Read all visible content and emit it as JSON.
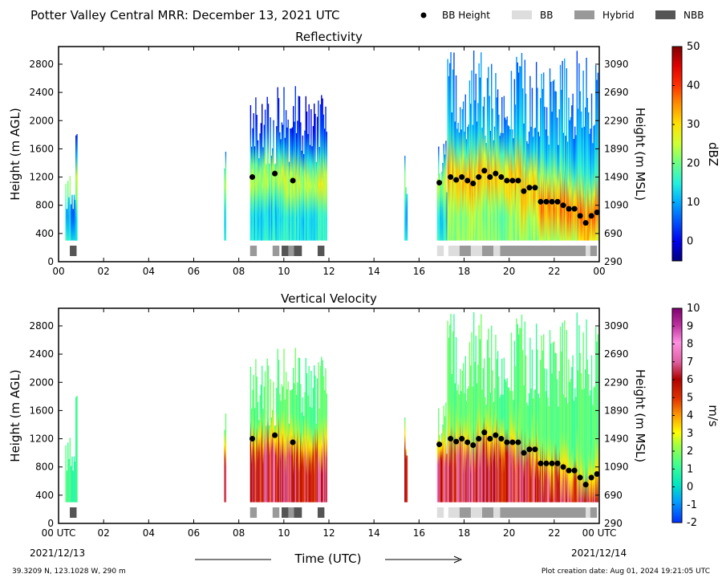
{
  "header": {
    "title": "Potter Valley Central MRR:  December 13, 2021 UTC",
    "legend": [
      {
        "label": "BB Height",
        "marker": "dot",
        "color": "#000000"
      },
      {
        "label": "BB",
        "marker": "box",
        "color": "#dddddd"
      },
      {
        "label": "Hybrid",
        "marker": "box",
        "color": "#999999"
      },
      {
        "label": "NBB",
        "marker": "box",
        "color": "#555555"
      }
    ]
  },
  "footer": {
    "location": "39.3209 N, 123.1028 W, 290 m",
    "creation": "Plot creation date: Aug 01, 2024 19:21:05 UTC",
    "start_date": "2021/12/13",
    "end_date": "2021/12/14",
    "time_label": "Time (UTC)"
  },
  "chart_data": [
    {
      "type": "heatmap",
      "title": "Reflectivity",
      "xlabel": "",
      "ylabel": "Height (m AGL)",
      "ylabel_right": "Height (m MSL)",
      "xlim": [
        0,
        24
      ],
      "ylim": [
        0,
        3050
      ],
      "x_ticks": [
        "00",
        "02",
        "04",
        "06",
        "08",
        "10",
        "12",
        "14",
        "16",
        "18",
        "20",
        "22",
        "00"
      ],
      "y_ticks": [
        0,
        400,
        800,
        1200,
        1600,
        2000,
        2400,
        2800
      ],
      "y_ticks_right": [
        290,
        690,
        1090,
        1490,
        1890,
        2290,
        2690,
        3090
      ],
      "colorbar": {
        "label": "dBZ",
        "min": -5,
        "max": 50,
        "ticks": [
          0,
          10,
          20,
          30,
          40,
          50
        ]
      },
      "grid": false
    },
    {
      "type": "heatmap",
      "title": "Vertical Velocity",
      "xlabel": "",
      "ylabel": "Height (m AGL)",
      "ylabel_right": "Height (m MSL)",
      "xlim": [
        0,
        24
      ],
      "ylim": [
        0,
        3050
      ],
      "x_ticks": [
        "00 UTC",
        "02",
        "04",
        "06",
        "08",
        "10",
        "12",
        "14",
        "16",
        "18",
        "20",
        "22",
        "00 UTC"
      ],
      "y_ticks": [
        0,
        400,
        800,
        1200,
        1600,
        2000,
        2400,
        2800
      ],
      "y_ticks_right": [
        290,
        690,
        1090,
        1490,
        1890,
        2290,
        2690,
        3090
      ],
      "colorbar": {
        "label": "m/s",
        "min": -2,
        "max": 10,
        "ticks": [
          -2,
          -1,
          0,
          1,
          2,
          3,
          4,
          5,
          6,
          7,
          8,
          9,
          10
        ]
      },
      "grid": false
    }
  ],
  "precip_segments": [
    {
      "start": 0.3,
      "end": 0.8,
      "top": 1300
    },
    {
      "start": 0.75,
      "end": 0.82,
      "top": 1900
    },
    {
      "start": 7.35,
      "end": 7.42,
      "top": 2000
    },
    {
      "start": 8.5,
      "end": 11.9,
      "top": 2500
    },
    {
      "start": 15.35,
      "end": 15.45,
      "top": 1550
    },
    {
      "start": 16.8,
      "end": 17.25,
      "top": 1750
    },
    {
      "start": 17.25,
      "end": 23.95,
      "top": 3000
    }
  ],
  "bb_height_points": [
    [
      8.6,
      1200
    ],
    [
      9.6,
      1250
    ],
    [
      10.4,
      1150
    ],
    [
      16.9,
      1120
    ],
    [
      17.4,
      1200
    ],
    [
      17.65,
      1160
    ],
    [
      17.9,
      1200
    ],
    [
      18.15,
      1150
    ],
    [
      18.4,
      1110
    ],
    [
      18.65,
      1200
    ],
    [
      18.9,
      1290
    ],
    [
      19.15,
      1200
    ],
    [
      19.4,
      1250
    ],
    [
      19.65,
      1200
    ],
    [
      19.9,
      1150
    ],
    [
      20.15,
      1150
    ],
    [
      20.4,
      1150
    ],
    [
      20.65,
      1000
    ],
    [
      20.9,
      1050
    ],
    [
      21.15,
      1050
    ],
    [
      21.4,
      850
    ],
    [
      21.65,
      850
    ],
    [
      21.9,
      850
    ],
    [
      22.15,
      850
    ],
    [
      22.4,
      800
    ],
    [
      22.65,
      750
    ],
    [
      22.9,
      750
    ],
    [
      23.15,
      650
    ],
    [
      23.4,
      550
    ],
    [
      23.65,
      650
    ],
    [
      23.9,
      700
    ]
  ],
  "bb_type_segments": [
    {
      "start": 0.5,
      "end": 0.8,
      "kind": "NBB"
    },
    {
      "start": 8.5,
      "end": 8.8,
      "kind": "Hybrid"
    },
    {
      "start": 9.5,
      "end": 9.8,
      "kind": "Hybrid"
    },
    {
      "start": 9.9,
      "end": 10.2,
      "kind": "NBB"
    },
    {
      "start": 10.2,
      "end": 10.45,
      "kind": "Hybrid"
    },
    {
      "start": 10.45,
      "end": 10.8,
      "kind": "NBB"
    },
    {
      "start": 11.5,
      "end": 11.8,
      "kind": "NBB"
    },
    {
      "start": 16.8,
      "end": 17.1,
      "kind": "BB"
    },
    {
      "start": 17.3,
      "end": 17.8,
      "kind": "BB"
    },
    {
      "start": 17.8,
      "end": 18.3,
      "kind": "Hybrid"
    },
    {
      "start": 18.3,
      "end": 18.8,
      "kind": "BB"
    },
    {
      "start": 18.8,
      "end": 19.3,
      "kind": "Hybrid"
    },
    {
      "start": 19.3,
      "end": 19.6,
      "kind": "BB"
    },
    {
      "start": 19.6,
      "end": 23.4,
      "kind": "Hybrid"
    },
    {
      "start": 23.4,
      "end": 23.6,
      "kind": "BB"
    },
    {
      "start": 23.6,
      "end": 23.9,
      "kind": "Hybrid"
    }
  ]
}
